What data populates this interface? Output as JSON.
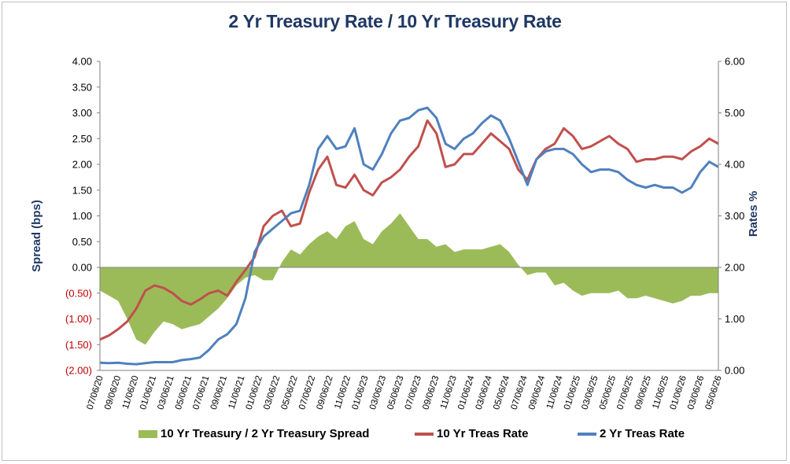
{
  "chart_data": {
    "type": "line",
    "title": "2 Yr Treasury Rate / 10 Yr Treasury Rate",
    "ylabel_left": "Spread (bps)",
    "ylabel_right": "Rates %",
    "ylim_left": [
      -2.0,
      4.0
    ],
    "ylim_right": [
      0.0,
      6.0
    ],
    "yticks_left": [
      "4.00",
      "3.50",
      "3.00",
      "2.50",
      "2.00",
      "1.50",
      "1.00",
      "0.50",
      "0.00",
      "(0.50)",
      "(1.00)",
      "(1.50)",
      "(2.00)"
    ],
    "yticks_right": [
      "6.00",
      "5.00",
      "4.00",
      "3.00",
      "2.00",
      "1.00",
      "0.00"
    ],
    "x_ticks": [
      "07/06/20",
      "09/06/20",
      "11/06/20",
      "01/06/21",
      "03/06/21",
      "05/06/21",
      "07/06/21",
      "09/06/21",
      "11/06/21",
      "01/06/22",
      "03/06/22",
      "05/06/22",
      "07/06/22",
      "09/06/22",
      "11/06/22",
      "01/06/23",
      "03/06/23",
      "05/06/23",
      "07/06/23",
      "09/06/23",
      "11/06/23",
      "01/06/24",
      "03/06/24",
      "05/06/24",
      "07/06/24",
      "09/06/24",
      "11/06/24",
      "01/06/25",
      "03/06/25",
      "05/06/25",
      "07/06/25",
      "09/06/25",
      "11/06/25",
      "01/06/26",
      "03/06/26",
      "05/06/26"
    ],
    "x": [
      "07/06/20",
      "09/06/20",
      "11/06/20",
      "01/06/21",
      "02/06/21",
      "03/06/21",
      "04/06/21",
      "05/06/21",
      "06/06/21",
      "07/06/21",
      "08/06/21",
      "09/06/21",
      "10/06/21",
      "11/06/21",
      "12/06/21",
      "01/06/22",
      "02/06/22",
      "03/06/22",
      "04/06/22",
      "05/06/22",
      "06/06/22",
      "07/06/22",
      "08/06/22",
      "09/06/22",
      "10/06/22",
      "11/06/22",
      "12/06/22",
      "01/06/23",
      "02/06/23",
      "03/06/23",
      "04/06/23",
      "05/06/23",
      "06/06/23",
      "07/06/23",
      "08/06/23",
      "09/06/23",
      "10/06/23",
      "11/06/23",
      "12/06/23",
      "01/06/24",
      "02/06/24",
      "03/06/24",
      "04/06/24",
      "05/06/24",
      "06/06/24",
      "07/06/24",
      "08/06/24",
      "09/06/24",
      "10/06/24",
      "11/06/24",
      "12/06/24",
      "01/06/25",
      "02/06/25",
      "03/06/25",
      "04/06/25",
      "05/06/25",
      "06/06/25",
      "07/06/25",
      "08/06/25",
      "09/06/25",
      "10/06/25",
      "11/06/25",
      "12/06/25",
      "01/06/26",
      "02/06/26",
      "03/06/26",
      "04/06/26",
      "05/06/26",
      "06/06/26"
    ],
    "series": [
      {
        "name": "10 Yr Treasury / 2 Yr Treasury Spread",
        "type": "area",
        "axis": "left",
        "color": "#9bbb59",
        "values": [
          -0.45,
          -0.55,
          -0.65,
          -1.0,
          -1.4,
          -1.5,
          -1.25,
          -1.05,
          -1.1,
          -1.2,
          -1.15,
          -1.1,
          -0.95,
          -0.8,
          -0.6,
          -0.35,
          -0.2,
          -0.15,
          -0.25,
          -0.25,
          0.1,
          0.35,
          0.25,
          0.45,
          0.6,
          0.7,
          0.55,
          0.8,
          0.9,
          0.55,
          0.45,
          0.7,
          0.85,
          1.05,
          0.8,
          0.55,
          0.55,
          0.4,
          0.45,
          0.3,
          0.35,
          0.35,
          0.35,
          0.4,
          0.45,
          0.3,
          0.05,
          -0.15,
          -0.1,
          -0.1,
          -0.35,
          -0.3,
          -0.45,
          -0.55,
          -0.5,
          -0.5,
          -0.5,
          -0.45,
          -0.6,
          -0.6,
          -0.55,
          -0.6,
          -0.65,
          -0.7,
          -0.65,
          -0.55,
          -0.55,
          -0.5,
          -0.5
        ]
      },
      {
        "name": "10 Yr Treas Rate",
        "type": "line",
        "axis": "right",
        "color": "#c0504d",
        "values": [
          0.6,
          0.68,
          0.8,
          0.95,
          1.2,
          1.55,
          1.65,
          1.6,
          1.5,
          1.35,
          1.28,
          1.38,
          1.5,
          1.55,
          1.45,
          1.72,
          1.95,
          2.2,
          2.8,
          3.0,
          3.1,
          2.8,
          2.85,
          3.45,
          3.9,
          4.15,
          3.6,
          3.55,
          3.8,
          3.5,
          3.4,
          3.65,
          3.75,
          3.9,
          4.15,
          4.35,
          4.85,
          4.6,
          3.95,
          4.0,
          4.2,
          4.2,
          4.4,
          4.6,
          4.45,
          4.3,
          3.9,
          3.7,
          4.1,
          4.3,
          4.4,
          4.7,
          4.55,
          4.3,
          4.35,
          4.45,
          4.55,
          4.4,
          4.3,
          4.05,
          4.1,
          4.1,
          4.15,
          4.15,
          4.1,
          4.25,
          4.35,
          4.5,
          4.4
        ]
      },
      {
        "name": "2 Yr Treas Rate",
        "type": "line",
        "axis": "right",
        "color": "#4f81bd",
        "values": [
          0.15,
          0.14,
          0.15,
          0.13,
          0.12,
          0.14,
          0.16,
          0.16,
          0.16,
          0.2,
          0.22,
          0.25,
          0.4,
          0.6,
          0.7,
          0.9,
          1.4,
          2.3,
          2.6,
          2.75,
          2.9,
          3.05,
          3.1,
          3.6,
          4.3,
          4.55,
          4.3,
          4.35,
          4.7,
          4.0,
          3.9,
          4.2,
          4.6,
          4.85,
          4.9,
          5.05,
          5.1,
          4.9,
          4.4,
          4.3,
          4.5,
          4.6,
          4.8,
          4.95,
          4.85,
          4.5,
          4.05,
          3.6,
          4.1,
          4.25,
          4.3,
          4.3,
          4.2,
          4.0,
          3.85,
          3.9,
          3.9,
          3.85,
          3.7,
          3.6,
          3.55,
          3.6,
          3.55,
          3.55,
          3.45,
          3.55,
          3.85,
          4.05,
          3.95
        ]
      }
    ],
    "grid": false,
    "legend_position": "bottom"
  }
}
